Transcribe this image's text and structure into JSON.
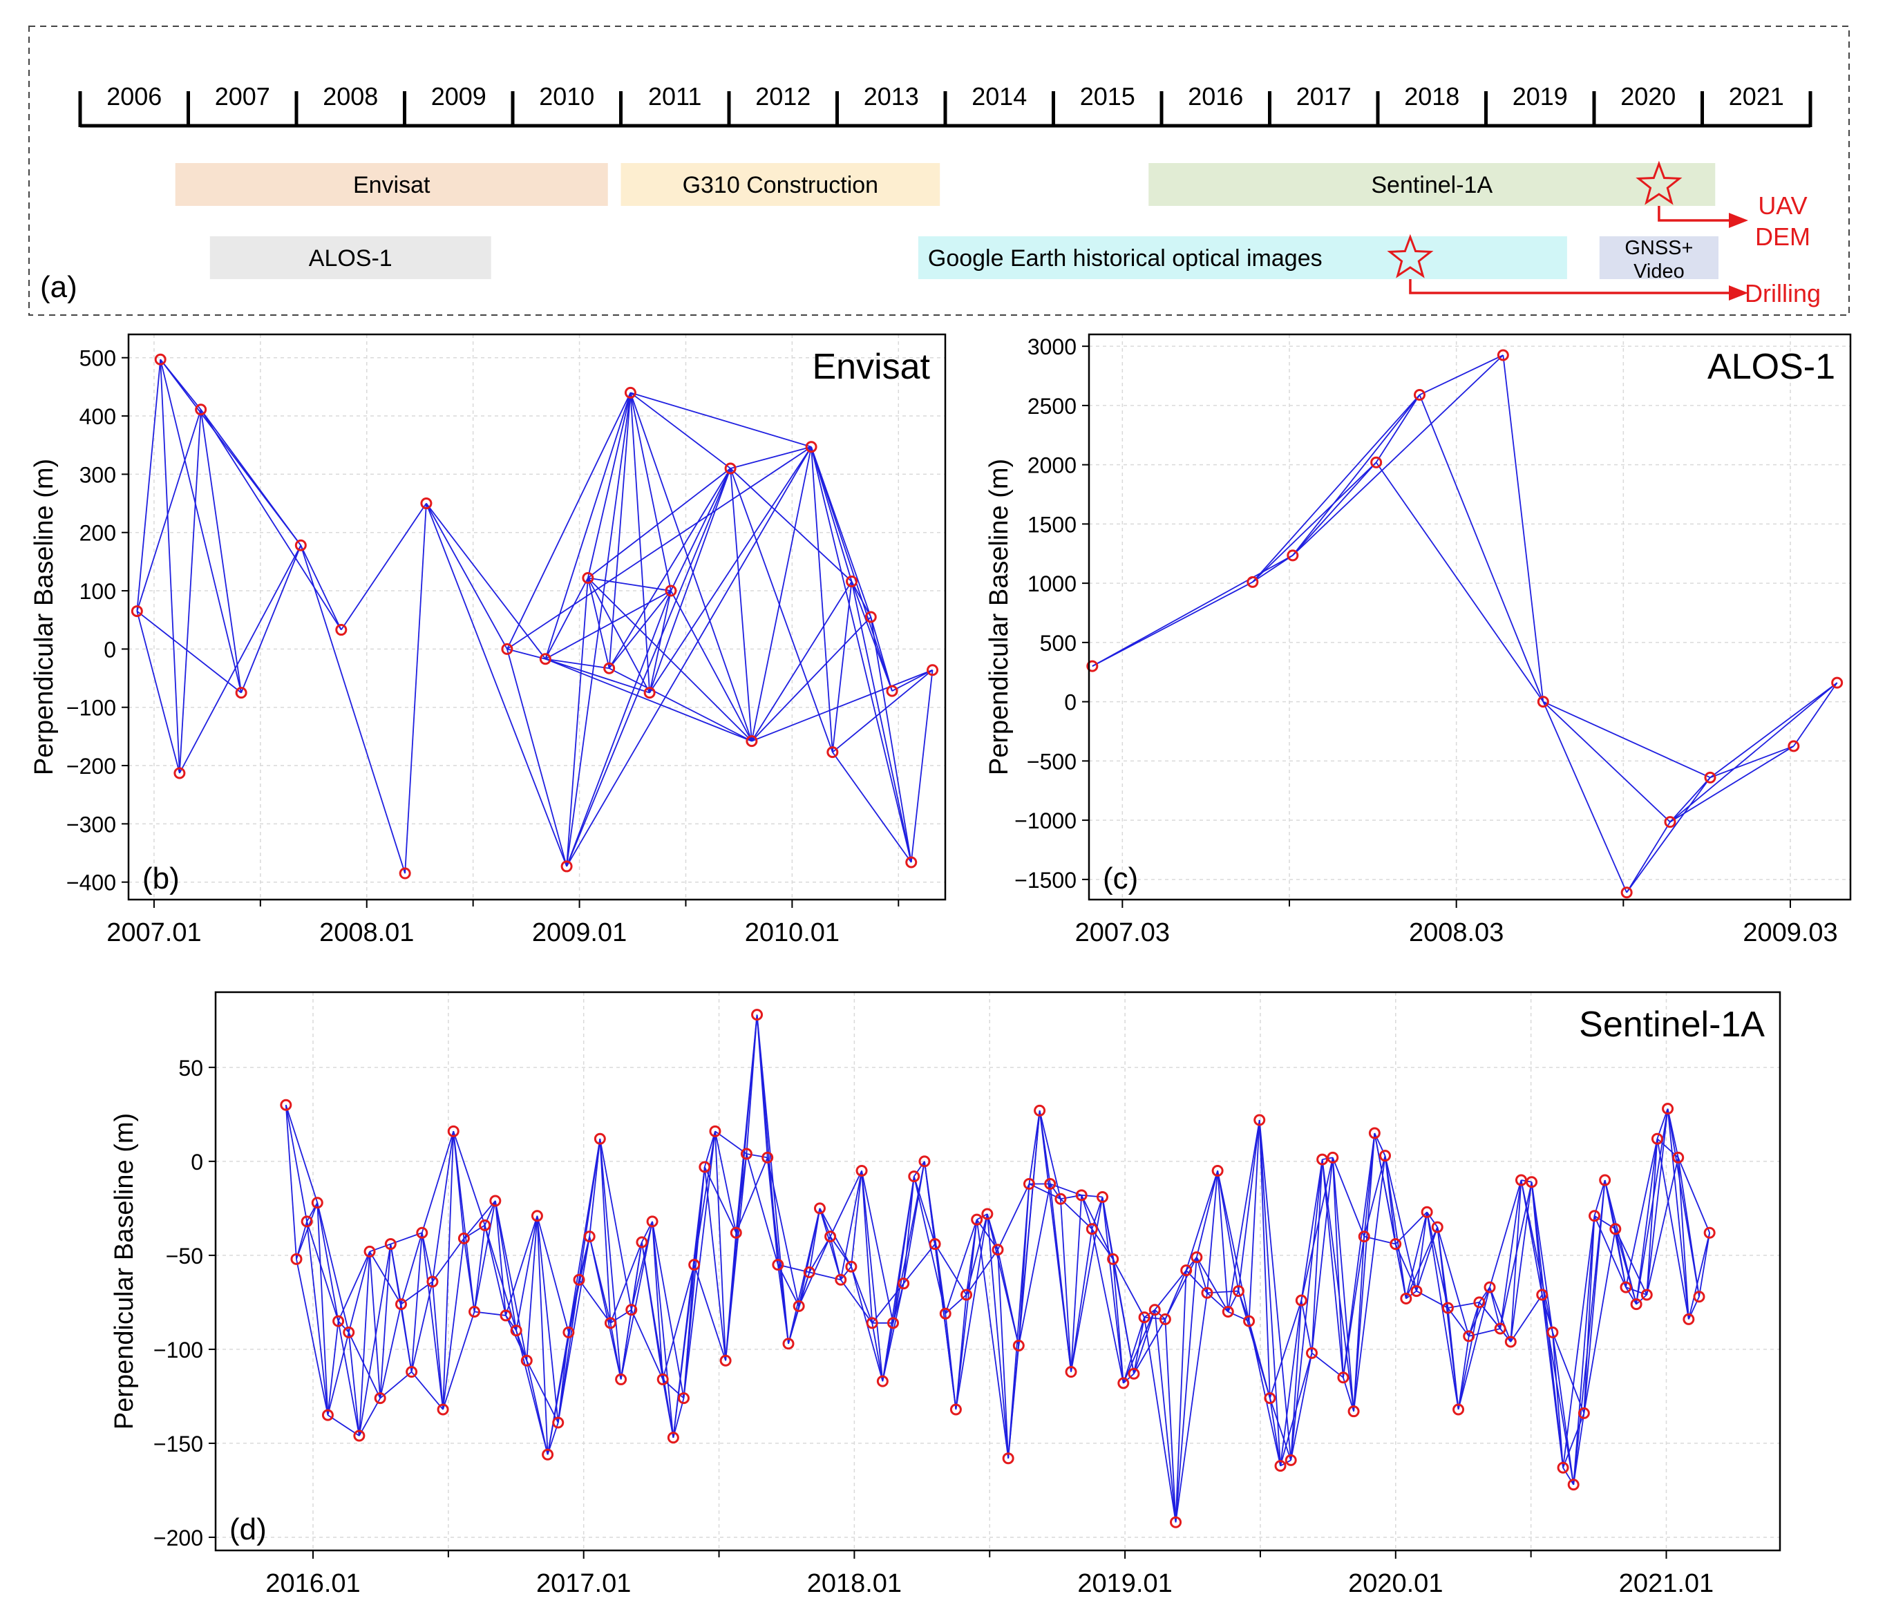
{
  "timeline": {
    "label": "(a)",
    "years": [
      "2006",
      "2007",
      "2008",
      "2009",
      "2010",
      "2011",
      "2012",
      "2013",
      "2014",
      "2015",
      "2016",
      "2017",
      "2018",
      "2019",
      "2020",
      "2021"
    ],
    "bars": [
      {
        "name": "envisat-bar",
        "label": "Envisat",
        "start": 2006.88,
        "end": 2010.88,
        "row": 1,
        "color": "#f8e2cf"
      },
      {
        "name": "g310-bar",
        "label": "G310 Construction",
        "start": 2011.0,
        "end": 2013.95,
        "row": 1,
        "color": "#fdeed0"
      },
      {
        "name": "sentinel-bar",
        "label": "Sentinel-1A",
        "start": 2015.88,
        "end": 2021.12,
        "row": 1,
        "color": "#e1ecd4"
      },
      {
        "name": "alos-bar",
        "label": "ALOS-1",
        "start": 2007.2,
        "end": 2009.8,
        "row": 2,
        "color": "#e9e9e9"
      },
      {
        "name": "google-earth-bar",
        "label": "Google Earth historical optical images",
        "start": 2013.75,
        "end": 2019.75,
        "row": 2,
        "color": "#d1f6f7"
      },
      {
        "name": "gnss-bar",
        "label": "GNSS+\nVideo",
        "start": 2020.05,
        "end": 2021.15,
        "row": 2,
        "color": "#dbe0f0"
      }
    ],
    "stars": [
      {
        "name": "uav-star",
        "year": 2020.6,
        "row": 1,
        "arrow_label": "UAV\nDEM"
      },
      {
        "name": "drilling-star",
        "year": 2018.3,
        "row": 2,
        "arrow_label": "Drilling"
      }
    ],
    "accent": "#e41a1c"
  },
  "chart_data": [
    {
      "panel": "(b)",
      "type": "line",
      "title": "Envisat",
      "xlabel": "",
      "ylabel": "Perpendicular Baseline (m)",
      "xlim": [
        2006.88,
        2010.72
      ],
      "ylim": [
        -430,
        540
      ],
      "yticks": [
        500,
        400,
        300,
        200,
        100,
        0,
        -100,
        -200,
        -300,
        -400
      ],
      "ytick_labels": [
        "500",
        "400",
        "300",
        "200",
        "100",
        "0",
        "−100",
        "−200",
        "−300",
        "−400"
      ],
      "xticks": [
        2007.0,
        2008.0,
        2009.0,
        2010.0
      ],
      "xtick_labels": [
        "2007.01",
        "2008.01",
        "2009.01",
        "2010.01"
      ],
      "xminor": [
        2007.5,
        2008.5,
        2009.5,
        2010.5
      ],
      "grid": true,
      "points": [
        {
          "x": 2006.92,
          "y": 65
        },
        {
          "x": 2007.03,
          "y": 497
        },
        {
          "x": 2007.12,
          "y": -213
        },
        {
          "x": 2007.22,
          "y": 411
        },
        {
          "x": 2007.41,
          "y": -75
        },
        {
          "x": 2007.69,
          "y": 178
        },
        {
          "x": 2007.88,
          "y": 33
        },
        {
          "x": 2008.18,
          "y": -385
        },
        {
          "x": 2008.28,
          "y": 250
        },
        {
          "x": 2008.66,
          "y": 0
        },
        {
          "x": 2008.84,
          "y": -17
        },
        {
          "x": 2008.94,
          "y": -373
        },
        {
          "x": 2009.04,
          "y": 122
        },
        {
          "x": 2009.14,
          "y": -33
        },
        {
          "x": 2009.24,
          "y": 440
        },
        {
          "x": 2009.33,
          "y": -75
        },
        {
          "x": 2009.43,
          "y": 100
        },
        {
          "x": 2009.71,
          "y": 310
        },
        {
          "x": 2009.81,
          "y": -158
        },
        {
          "x": 2010.09,
          "y": 347
        },
        {
          "x": 2010.19,
          "y": -177
        },
        {
          "x": 2010.28,
          "y": 116
        },
        {
          "x": 2010.37,
          "y": 55
        },
        {
          "x": 2010.47,
          "y": -72
        },
        {
          "x": 2010.56,
          "y": -366
        },
        {
          "x": 2010.66,
          "y": -36
        }
      ],
      "edges": [
        [
          0,
          1
        ],
        [
          0,
          2
        ],
        [
          0,
          4
        ],
        [
          1,
          2
        ],
        [
          1,
          3
        ],
        [
          1,
          4
        ],
        [
          1,
          5
        ],
        [
          2,
          3
        ],
        [
          3,
          4
        ],
        [
          3,
          5
        ],
        [
          3,
          6
        ],
        [
          4,
          5
        ],
        [
          2,
          5
        ],
        [
          5,
          6
        ],
        [
          5,
          7
        ],
        [
          8,
          7
        ],
        [
          8,
          9
        ],
        [
          8,
          10
        ],
        [
          8,
          11
        ],
        [
          9,
          10
        ],
        [
          9,
          11
        ],
        [
          9,
          14
        ],
        [
          10,
          12
        ],
        [
          10,
          13
        ],
        [
          10,
          14
        ],
        [
          10,
          15
        ],
        [
          10,
          16
        ],
        [
          11,
          12
        ],
        [
          11,
          14
        ],
        [
          11,
          16
        ],
        [
          11,
          17
        ],
        [
          12,
          13
        ],
        [
          12,
          14
        ],
        [
          12,
          16
        ],
        [
          12,
          18
        ],
        [
          13,
          14
        ],
        [
          13,
          16
        ],
        [
          14,
          15
        ],
        [
          14,
          16
        ],
        [
          14,
          17
        ],
        [
          14,
          18
        ],
        [
          14,
          19
        ],
        [
          15,
          16
        ],
        [
          15,
          17
        ],
        [
          16,
          17
        ],
        [
          16,
          18
        ],
        [
          17,
          18
        ],
        [
          17,
          19
        ],
        [
          17,
          20
        ],
        [
          17,
          21
        ],
        [
          18,
          19
        ],
        [
          18,
          21
        ],
        [
          18,
          22
        ],
        [
          19,
          20
        ],
        [
          19,
          21
        ],
        [
          19,
          22
        ],
        [
          19,
          23
        ],
        [
          19,
          24
        ],
        [
          20,
          21
        ],
        [
          20,
          24
        ],
        [
          20,
          25
        ],
        [
          21,
          22
        ],
        [
          21,
          23
        ],
        [
          21,
          24
        ],
        [
          22,
          23
        ],
        [
          22,
          24
        ],
        [
          23,
          25
        ],
        [
          24,
          25
        ],
        [
          18,
          25
        ],
        [
          13,
          17
        ],
        [
          15,
          19
        ],
        [
          12,
          17
        ],
        [
          11,
          19
        ],
        [
          9,
          19
        ],
        [
          10,
          18
        ],
        [
          13,
          18
        ],
        [
          12,
          15
        ],
        [
          0,
          3
        ],
        [
          6,
          8
        ]
      ]
    },
    {
      "panel": "(c)",
      "type": "line",
      "title": "ALOS-1",
      "xlabel": "",
      "ylabel": "Perpendicular Baseline (m)",
      "xlim": [
        2007.07,
        2009.35
      ],
      "ylim": [
        -1670,
        3100
      ],
      "yticks": [
        3000,
        2500,
        2000,
        1500,
        1000,
        500,
        0,
        -500,
        -1000,
        -1500
      ],
      "ytick_labels": [
        "3000",
        "2500",
        "2000",
        "1500",
        "1000",
        "500",
        "0",
        "−500",
        "−1000",
        "−1500"
      ],
      "xticks": [
        2007.17,
        2008.17,
        2009.17
      ],
      "xtick_labels": [
        "2007.03",
        "2008.03",
        "2009.03"
      ],
      "xminor": [
        2007.67,
        2008.67
      ],
      "grid": true,
      "points": [
        {
          "x": 2007.08,
          "y": 300
        },
        {
          "x": 2007.56,
          "y": 1010
        },
        {
          "x": 2007.68,
          "y": 1235
        },
        {
          "x": 2007.93,
          "y": 2020
        },
        {
          "x": 2008.06,
          "y": 2590
        },
        {
          "x": 2008.31,
          "y": 2925
        },
        {
          "x": 2008.43,
          "y": 0
        },
        {
          "x": 2008.68,
          "y": -1610
        },
        {
          "x": 2008.81,
          "y": -1015
        },
        {
          "x": 2008.93,
          "y": -640
        },
        {
          "x": 2009.18,
          "y": -375
        },
        {
          "x": 2009.31,
          "y": 160
        }
      ],
      "edges": [
        [
          0,
          1
        ],
        [
          0,
          2
        ],
        [
          1,
          2
        ],
        [
          1,
          3
        ],
        [
          1,
          4
        ],
        [
          2,
          3
        ],
        [
          2,
          4
        ],
        [
          2,
          5
        ],
        [
          3,
          4
        ],
        [
          3,
          6
        ],
        [
          4,
          5
        ],
        [
          4,
          6
        ],
        [
          5,
          6
        ],
        [
          6,
          7
        ],
        [
          6,
          8
        ],
        [
          6,
          9
        ],
        [
          7,
          8
        ],
        [
          7,
          9
        ],
        [
          8,
          9
        ],
        [
          8,
          10
        ],
        [
          8,
          11
        ],
        [
          9,
          10
        ],
        [
          9,
          11
        ],
        [
          10,
          11
        ]
      ]
    },
    {
      "panel": "(d)",
      "type": "line",
      "title": "Sentinel-1A",
      "xlabel": "",
      "ylabel": "Perpendicular Baseline (m)",
      "xlim": [
        2015.64,
        2021.42
      ],
      "ylim": [
        -207,
        90
      ],
      "yticks": [
        50,
        0,
        -50,
        -100,
        -150,
        -200
      ],
      "ytick_labels": [
        "50",
        "0",
        "−50",
        "−100",
        "−150",
        "−200"
      ],
      "xticks": [
        2016.0,
        2017.0,
        2018.0,
        2019.0,
        2020.0,
        2021.0
      ],
      "xtick_labels": [
        "2016.01",
        "2017.01",
        "2018.01",
        "2019.01",
        "2020.01",
        "2021.01"
      ],
      "xminor": [
        2016.5,
        2017.5,
        2018.5,
        2019.5,
        2020.5
      ],
      "grid": true,
      "y_series": [
        30,
        -52,
        -32,
        -22,
        -135,
        -85,
        -91,
        -146,
        -48,
        -126,
        -44,
        -76,
        -112,
        -38,
        -64,
        -132,
        16,
        -41,
        -80,
        -34,
        -21,
        -82,
        -90,
        -106,
        -29,
        -156,
        -139,
        -91,
        -63,
        -40,
        12,
        -86,
        -116,
        -79,
        -43,
        -32,
        -116,
        -147,
        -126,
        -55,
        -3,
        16,
        -106,
        -38,
        4,
        78,
        2,
        -55,
        -97,
        -77,
        -59,
        -25,
        -40,
        -63,
        -56,
        -5,
        -86,
        -117,
        -86,
        -65,
        -8,
        0,
        -44,
        -81,
        -132,
        -71,
        -31,
        -28,
        -47,
        -158,
        -98,
        -12,
        27,
        -12,
        -20,
        -112,
        -18,
        -36,
        -19,
        -52,
        -118,
        -113,
        -83,
        -79,
        -84,
        -192,
        -58,
        -51,
        -70,
        -5,
        -80,
        -69,
        -85,
        22,
        -126,
        -162,
        -159,
        -74,
        -102,
        1,
        2,
        -115,
        -133,
        -40,
        15,
        3,
        -44,
        -73,
        -69,
        -27,
        -35,
        -78,
        -132,
        -93,
        -75,
        -67,
        -89,
        -96,
        -10,
        -11,
        -71,
        -91,
        -163,
        -172,
        -134,
        -29,
        -10,
        -36,
        -67,
        -76,
        -71,
        12,
        28,
        2,
        -84,
        -72,
        -38
      ],
      "x_start": 2015.9,
      "x_end": 2021.16
    }
  ]
}
